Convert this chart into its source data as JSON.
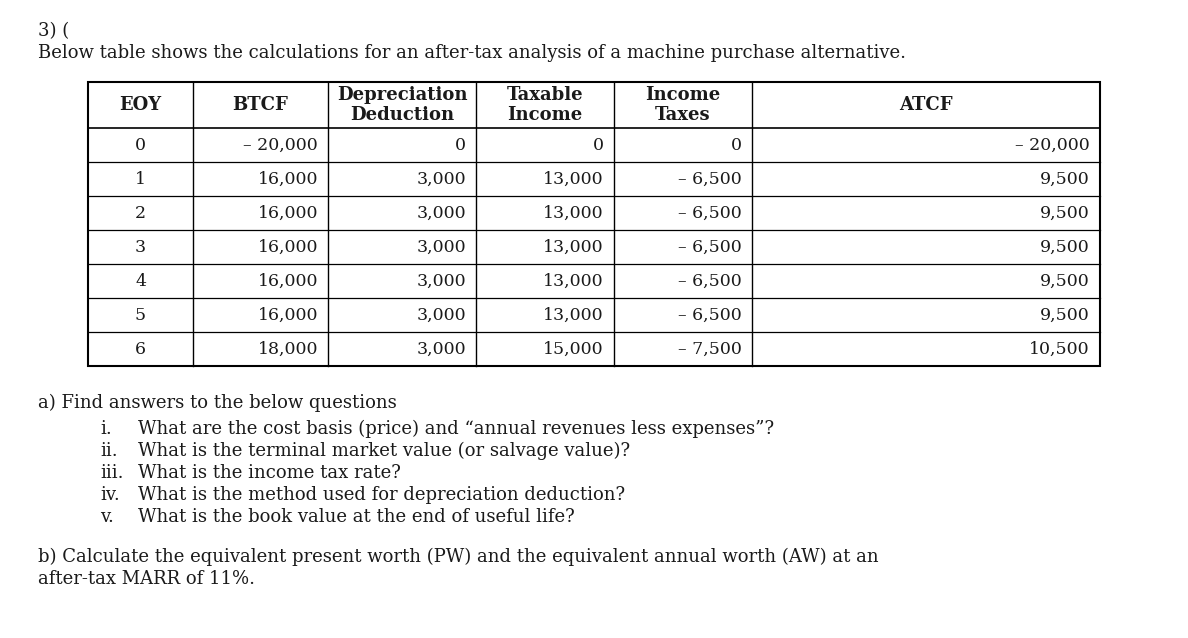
{
  "title_line1": "3) (",
  "title_line2": "Below table shows the calculations for an after-tax analysis of a machine purchase alternative.",
  "headers_row1": [
    "EOY",
    "BTCF",
    "Depreciation",
    "Taxable",
    "Income",
    "ATCF"
  ],
  "headers_row2": [
    "",
    "",
    "Deduction",
    "Income",
    "Taxes",
    ""
  ],
  "rows": [
    [
      "0",
      "– 20,000",
      "0",
      "0",
      "0",
      "– 20,000"
    ],
    [
      "1",
      "16,000",
      "3,000",
      "13,000",
      "– 6,500",
      "9,500"
    ],
    [
      "2",
      "16,000",
      "3,000",
      "13,000",
      "– 6,500",
      "9,500"
    ],
    [
      "3",
      "16,000",
      "3,000",
      "13,000",
      "– 6,500",
      "9,500"
    ],
    [
      "4",
      "16,000",
      "3,000",
      "13,000",
      "– 6,500",
      "9,500"
    ],
    [
      "5",
      "16,000",
      "3,000",
      "13,000",
      "– 6,500",
      "9,500"
    ],
    [
      "6",
      "18,000",
      "3,000",
      "15,000",
      "– 7,500",
      "10,500"
    ]
  ],
  "questions_a_header": "a) Find answers to the below questions",
  "questions_a": [
    [
      "i.",
      "What are the cost basis (price) and “annual revenues less expenses”?"
    ],
    [
      "ii.",
      "What is the terminal market value (or salvage value)?"
    ],
    [
      "iii.",
      "What is the income tax rate?"
    ],
    [
      "iv.",
      "What is the method used for depreciation deduction?"
    ],
    [
      "v.",
      "What is the book value at the end of useful life?"
    ]
  ],
  "question_b_line1": "b) Calculate the equivalent present worth (PW) and the equivalent annual worth (AW) at an",
  "question_b_line2": "after-tax MARR of 11%.",
  "bg_color": "#ffffff",
  "text_color": "#1a1a1a",
  "font_size_title": 13,
  "font_size_table_header": 13,
  "font_size_table_data": 12.5,
  "font_size_text": 13
}
